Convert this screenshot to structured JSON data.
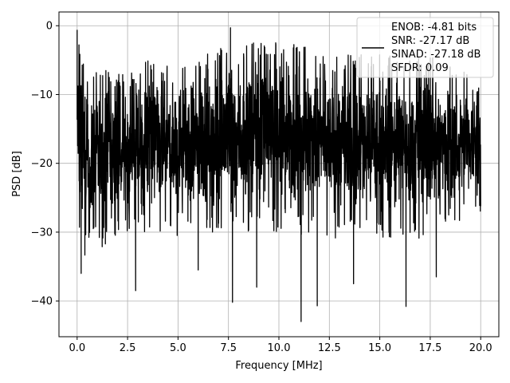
{
  "chart_data": {
    "type": "line",
    "title": "",
    "xlabel": "Frequency [MHz]",
    "ylabel": "PSD [dB]",
    "xlim": [
      -0.9,
      20.9
    ],
    "ylim": [
      -45.2,
      2.0
    ],
    "xticks": [
      0.0,
      2.5,
      5.0,
      7.5,
      10.0,
      12.5,
      15.0,
      17.5,
      20.0
    ],
    "xtick_labels": [
      "0.0",
      "2.5",
      "5.0",
      "7.5",
      "10.0",
      "12.5",
      "15.0",
      "17.5",
      "20.0"
    ],
    "yticks": [
      0,
      -10,
      -20,
      -30,
      -40
    ],
    "ytick_labels": [
      "0",
      "−10",
      "−20",
      "−30",
      "−40"
    ],
    "grid": true,
    "legend": {
      "placement": "top-right",
      "entries": [
        "ENOB: -4.81 bits",
        "SNR: -27.17 dB",
        "SINAD: -27.18 dB",
        "SFDR: 0.09"
      ]
    },
    "series": [
      {
        "color": "#000000",
        "x_start": 0.0,
        "x_end": 20.0,
        "envelope": {
          "x": [
            0.0,
            0.5,
            1.0,
            2.5,
            3.5,
            5.0,
            7.5,
            10.0,
            12.5,
            15.0,
            17.5,
            20.0
          ],
          "upper": [
            -1,
            -8,
            -6,
            -7,
            -5,
            -5,
            -3,
            -2,
            -4,
            -4,
            -4,
            -8
          ],
          "lower": [
            -26,
            -33,
            -31,
            -27,
            -27,
            -28,
            -27,
            -27,
            -28,
            -28,
            -28,
            -24
          ]
        },
        "notable_points": [
          {
            "x": 0.0,
            "y": -0.6
          },
          {
            "x": 7.6,
            "y": -0.3
          },
          {
            "x": 0.2,
            "y": -36.0
          },
          {
            "x": 2.9,
            "y": -38.5
          },
          {
            "x": 6.0,
            "y": -35.5
          },
          {
            "x": 7.7,
            "y": -40.2
          },
          {
            "x": 8.9,
            "y": -38.0
          },
          {
            "x": 11.1,
            "y": -43.0
          },
          {
            "x": 11.9,
            "y": -40.7
          },
          {
            "x": 13.7,
            "y": -37.5
          },
          {
            "x": 16.3,
            "y": -40.8
          },
          {
            "x": 17.8,
            "y": -36.5
          }
        ]
      }
    ]
  }
}
